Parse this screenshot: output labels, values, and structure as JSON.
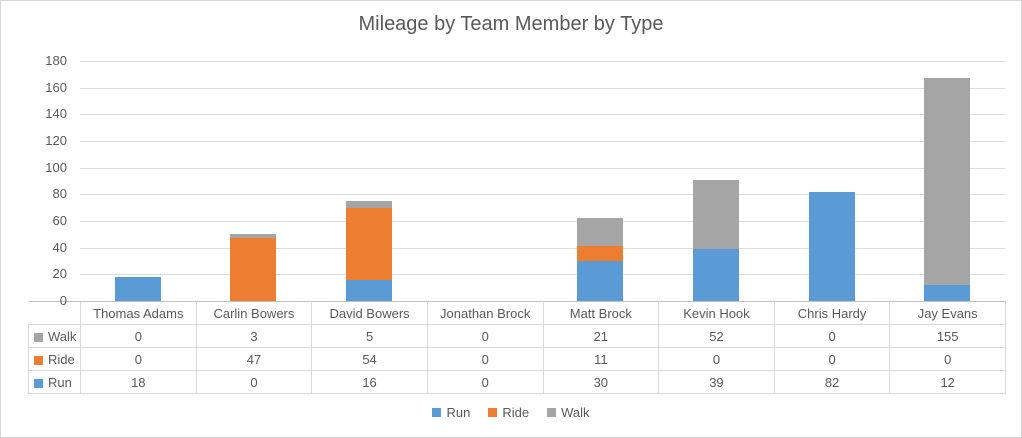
{
  "chart_data": {
    "type": "bar",
    "stacked": true,
    "title": "Mileage by Team Member by Type",
    "categories": [
      "Thomas Adams",
      "Carlin Bowers",
      "David Bowers",
      "Jonathan Brock",
      "Matt Brock",
      "Kevin Hook",
      "Chris Hardy",
      "Jay Evans"
    ],
    "series": [
      {
        "name": "Run",
        "color": "#5B9BD5",
        "values": [
          18,
          0,
          16,
          0,
          30,
          39,
          82,
          12
        ]
      },
      {
        "name": "Ride",
        "color": "#ED7D31",
        "values": [
          0,
          47,
          54,
          0,
          11,
          0,
          0,
          0
        ]
      },
      {
        "name": "Walk",
        "color": "#A5A5A5",
        "values": [
          0,
          3,
          5,
          0,
          21,
          52,
          0,
          155
        ]
      }
    ],
    "xlabel": "",
    "ylabel": "",
    "ylim": [
      0,
      180
    ],
    "yticks": [
      0,
      20,
      40,
      60,
      80,
      100,
      120,
      140,
      160,
      180
    ],
    "grid": true,
    "legend_position": "bottom",
    "show_data_table": true
  },
  "table": {
    "row_order": [
      "Walk",
      "Ride",
      "Run"
    ]
  },
  "legend": {
    "order": [
      "Run",
      "Ride",
      "Walk"
    ]
  }
}
